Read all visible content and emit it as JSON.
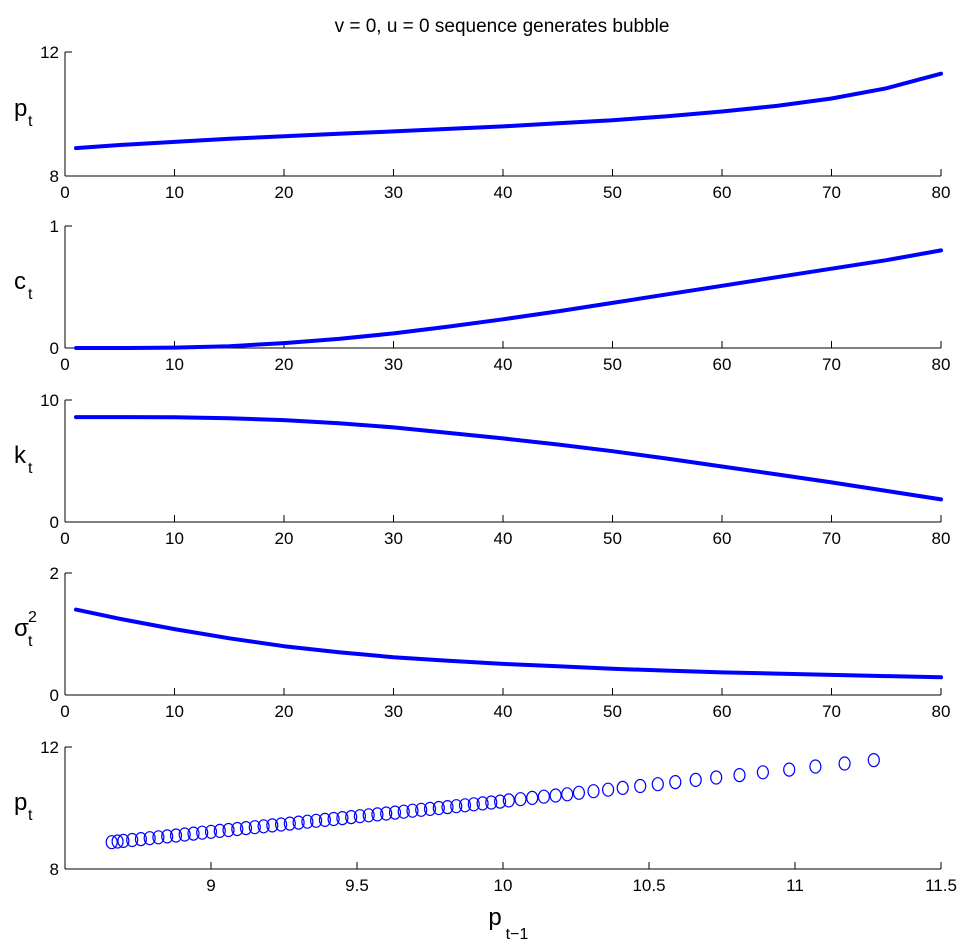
{
  "figure_title": "v = 0, u = 0 sequence generates bubble",
  "colors": {
    "series": "#0000ff",
    "axes": "#000000",
    "background": "#ffffff"
  },
  "chart_data": [
    {
      "type": "line",
      "ylabel": {
        "main": "p",
        "sub": "t",
        "sup": ""
      },
      "xlim": [
        0,
        80
      ],
      "ylim": [
        8,
        12
      ],
      "xticks": [
        0,
        10,
        20,
        30,
        40,
        50,
        60,
        70,
        80
      ],
      "yticks": [
        8,
        12
      ],
      "grid": false,
      "series": [
        {
          "x": [
            1,
            5,
            10,
            15,
            20,
            25,
            30,
            35,
            40,
            45,
            50,
            55,
            60,
            65,
            70,
            75,
            80
          ],
          "y": [
            8.9,
            9.0,
            9.1,
            9.2,
            9.28,
            9.36,
            9.44,
            9.52,
            9.6,
            9.7,
            9.8,
            9.93,
            10.08,
            10.26,
            10.5,
            10.83,
            11.3
          ]
        }
      ]
    },
    {
      "type": "line",
      "ylabel": {
        "main": "c",
        "sub": "t",
        "sup": ""
      },
      "xlim": [
        0,
        80
      ],
      "ylim": [
        0,
        1
      ],
      "xticks": [
        0,
        10,
        20,
        30,
        40,
        50,
        60,
        70,
        80
      ],
      "yticks": [
        0,
        1
      ],
      "grid": false,
      "series": [
        {
          "x": [
            1,
            5,
            10,
            15,
            20,
            25,
            30,
            35,
            40,
            45,
            50,
            55,
            60,
            65,
            70,
            75,
            80
          ],
          "y": [
            0.0,
            0.0,
            0.003,
            0.015,
            0.04,
            0.075,
            0.12,
            0.175,
            0.235,
            0.3,
            0.37,
            0.44,
            0.51,
            0.58,
            0.65,
            0.72,
            0.8
          ]
        }
      ]
    },
    {
      "type": "line",
      "ylabel": {
        "main": "k",
        "sub": "t",
        "sup": ""
      },
      "xlim": [
        0,
        80
      ],
      "ylim": [
        0,
        10
      ],
      "xticks": [
        0,
        10,
        20,
        30,
        40,
        50,
        60,
        70,
        80
      ],
      "yticks": [
        0,
        10
      ],
      "grid": false,
      "series": [
        {
          "x": [
            1,
            5,
            10,
            15,
            20,
            25,
            30,
            35,
            40,
            45,
            50,
            55,
            60,
            65,
            70,
            75,
            80
          ],
          "y": [
            8.6,
            8.6,
            8.58,
            8.5,
            8.35,
            8.1,
            7.75,
            7.3,
            6.85,
            6.35,
            5.8,
            5.2,
            4.55,
            3.9,
            3.25,
            2.55,
            1.85
          ]
        }
      ]
    },
    {
      "type": "line",
      "ylabel": {
        "main": "σ",
        "sub": "t",
        "sup": "2"
      },
      "xlim": [
        0,
        80
      ],
      "ylim": [
        0,
        2
      ],
      "xticks": [
        0,
        10,
        20,
        30,
        40,
        50,
        60,
        70,
        80
      ],
      "yticks": [
        0,
        2
      ],
      "grid": false,
      "series": [
        {
          "x": [
            1,
            5,
            10,
            15,
            20,
            25,
            30,
            35,
            40,
            45,
            50,
            55,
            60,
            65,
            70,
            75,
            80
          ],
          "y": [
            1.4,
            1.25,
            1.08,
            0.93,
            0.8,
            0.7,
            0.62,
            0.56,
            0.51,
            0.47,
            0.43,
            0.4,
            0.37,
            0.35,
            0.33,
            0.31,
            0.29
          ]
        }
      ]
    },
    {
      "type": "scatter",
      "marker": "open-circle",
      "ylabel": {
        "main": "p",
        "sub": "t",
        "sup": ""
      },
      "xlabel": {
        "main": "p",
        "sub": "t−1"
      },
      "xlim": [
        8.5,
        11.5
      ],
      "ylim": [
        8,
        12
      ],
      "xticks": [
        9,
        9.5,
        10,
        10.5,
        11,
        11.5
      ],
      "xtick_labels": [
        "9",
        "9.5",
        "10",
        "10.5",
        "11",
        "11.5"
      ],
      "yticks": [
        8,
        12
      ],
      "grid": false,
      "series": [
        {
          "x": [
            8.66,
            8.68,
            8.7,
            8.73,
            8.76,
            8.79,
            8.82,
            8.85,
            8.88,
            8.91,
            8.94,
            8.97,
            9.0,
            9.03,
            9.06,
            9.09,
            9.12,
            9.15,
            9.18,
            9.21,
            9.24,
            9.27,
            9.3,
            9.33,
            9.36,
            9.39,
            9.42,
            9.45,
            9.48,
            9.51,
            9.54,
            9.57,
            9.6,
            9.63,
            9.66,
            9.69,
            9.72,
            9.75,
            9.78,
            9.81,
            9.84,
            9.87,
            9.9,
            9.93,
            9.96,
            9.99,
            10.02,
            10.06,
            10.1,
            10.14,
            10.18,
            10.22,
            10.26,
            10.31,
            10.36,
            10.41,
            10.47,
            10.53,
            10.59,
            10.66,
            10.73,
            10.81,
            10.89,
            10.98,
            11.07,
            11.17,
            11.27
          ],
          "y": [
            8.88,
            8.9,
            8.92,
            8.95,
            8.98,
            9.01,
            9.04,
            9.07,
            9.1,
            9.13,
            9.16,
            9.19,
            9.22,
            9.25,
            9.28,
            9.31,
            9.34,
            9.37,
            9.4,
            9.43,
            9.46,
            9.49,
            9.52,
            9.55,
            9.58,
            9.61,
            9.64,
            9.67,
            9.7,
            9.73,
            9.76,
            9.79,
            9.82,
            9.85,
            9.88,
            9.91,
            9.94,
            9.97,
            10.0,
            10.03,
            10.06,
            10.09,
            10.12,
            10.15,
            10.18,
            10.21,
            10.25,
            10.29,
            10.33,
            10.37,
            10.41,
            10.45,
            10.5,
            10.55,
            10.6,
            10.66,
            10.72,
            10.78,
            10.85,
            10.92,
            11.0,
            11.08,
            11.17,
            11.26,
            11.36,
            11.46,
            11.57
          ]
        }
      ]
    }
  ]
}
